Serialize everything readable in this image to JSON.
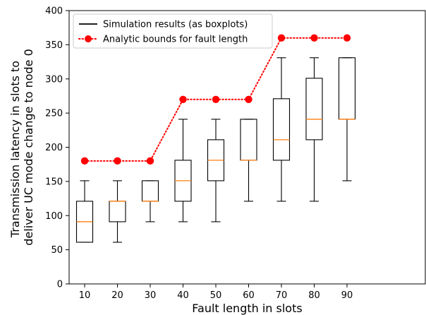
{
  "chart_data": {
    "type": "boxplot",
    "xlabel": "Fault length in slots",
    "ylabel": "Transmission latency in slots to deliver UC mode change to node 0",
    "ylabel_lines": [
      "Transmission latency in slots to",
      "deliver UC mode change to node 0"
    ],
    "ylim": [
      0,
      400
    ],
    "yticks": [
      0,
      50,
      100,
      150,
      200,
      250,
      300,
      350,
      400
    ],
    "categories": [
      10,
      20,
      30,
      40,
      50,
      60,
      70,
      80,
      90
    ],
    "grid": false,
    "legend_position": "top-left",
    "series": [
      {
        "name": "Simulation results (as boxplots)",
        "kind": "boxplot",
        "color": "#000000",
        "median_color": "#ff7f0e",
        "boxes": [
          {
            "x": 10,
            "whisker_low": 61,
            "q1": 61,
            "median": 91,
            "q3": 121,
            "whisker_high": 151
          },
          {
            "x": 20,
            "whisker_low": 61,
            "q1": 91,
            "median": 121,
            "q3": 121,
            "whisker_high": 151
          },
          {
            "x": 30,
            "whisker_low": 91,
            "q1": 121,
            "median": 121,
            "q3": 151,
            "whisker_high": 151
          },
          {
            "x": 40,
            "whisker_low": 91,
            "q1": 121,
            "median": 151,
            "q3": 181,
            "whisker_high": 241
          },
          {
            "x": 50,
            "whisker_low": 91,
            "q1": 151,
            "median": 181,
            "q3": 211,
            "whisker_high": 241
          },
          {
            "x": 60,
            "whisker_low": 121,
            "q1": 181,
            "median": 181,
            "q3": 241,
            "whisker_high": 241
          },
          {
            "x": 70,
            "whisker_low": 121,
            "q1": 181,
            "median": 211,
            "q3": 271,
            "whisker_high": 331
          },
          {
            "x": 80,
            "whisker_low": 121,
            "q1": 211,
            "median": 241,
            "q3": 301,
            "whisker_high": 331
          },
          {
            "x": 90,
            "whisker_low": 151,
            "q1": 241,
            "median": 241,
            "q3": 331,
            "whisker_high": 331
          }
        ]
      },
      {
        "name": "Analytic bounds for fault length",
        "kind": "line",
        "color": "#ff0000",
        "line_style": "dotted",
        "marker": "circle",
        "x": [
          10,
          20,
          30,
          40,
          50,
          60,
          70,
          80,
          90
        ],
        "values": [
          180,
          180,
          180,
          270,
          270,
          270,
          360,
          360,
          360
        ]
      }
    ]
  }
}
